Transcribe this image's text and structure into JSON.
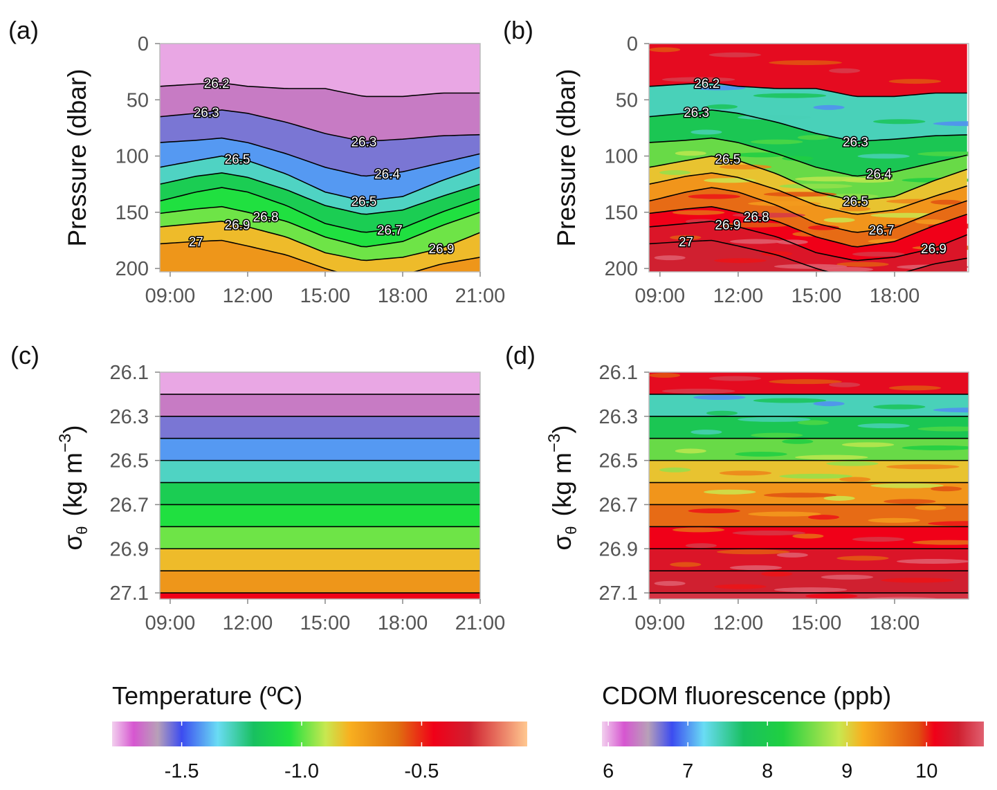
{
  "chart_data": [
    {
      "panel": "(a)",
      "type": "heatmap",
      "variable": "temperature",
      "xlabel": "",
      "ylabel": "Pressure (dbar)",
      "xticks": [
        "09:00",
        "12:00",
        "15:00",
        "18:00",
        "21:00"
      ],
      "xtick_hours": [
        9,
        12,
        15,
        18,
        21
      ],
      "yticks": [
        "0",
        "50",
        "100",
        "150",
        "200"
      ],
      "ytick_values": [
        0,
        50,
        100,
        150,
        200
      ],
      "xlim_hours": [
        8.6,
        21.0
      ],
      "ylim": [
        0,
        203
      ],
      "y_inverted": true
    },
    {
      "panel": "(b)",
      "type": "heatmap",
      "variable": "cdom",
      "xlabel": "",
      "ylabel": "Pressure (dbar)",
      "xticks": [
        "09:00",
        "12:00",
        "15:00",
        "18:00"
      ],
      "xtick_hours": [
        9,
        12,
        15,
        18
      ],
      "yticks": [
        "0",
        "50",
        "100",
        "150",
        "200"
      ],
      "ytick_values": [
        0,
        50,
        100,
        150,
        200
      ],
      "xlim_hours": [
        8.58,
        20.84
      ],
      "ylim": [
        0,
        203
      ],
      "y_inverted": true
    },
    {
      "panel": "(c)",
      "type": "heatmap",
      "variable": "temperature",
      "xlabel": "",
      "ylabel_main": "σ",
      "ylabel_sub": "θ",
      "ylabel_units": "(kg m",
      "ylabel_sup": "−3",
      "ylabel_close": ")",
      "xticks": [
        "09:00",
        "12:00",
        "15:00",
        "18:00",
        "21:00"
      ],
      "xtick_hours": [
        9,
        12,
        15,
        18,
        21
      ],
      "yticks": [
        "26.1",
        "26.3",
        "26.5",
        "26.7",
        "26.9",
        "27.1"
      ],
      "ytick_values": [
        26.1,
        26.3,
        26.5,
        26.7,
        26.9,
        27.1
      ],
      "xlim_hours": [
        8.6,
        21.0
      ],
      "ylim": [
        26.1,
        27.128
      ],
      "y_inverted": true
    },
    {
      "panel": "(d)",
      "type": "heatmap",
      "variable": "cdom",
      "xlabel": "",
      "ylabel_main": "σ",
      "ylabel_sub": "θ",
      "ylabel_units": "(kg m",
      "ylabel_sup": "−3",
      "ylabel_close": ")",
      "xticks": [
        "09:00",
        "12:00",
        "15:00",
        "18:00"
      ],
      "xtick_hours": [
        9,
        12,
        15,
        18
      ],
      "yticks": [
        "26.1",
        "26.3",
        "26.5",
        "26.7",
        "26.9",
        "27.1"
      ],
      "ytick_values": [
        26.1,
        26.3,
        26.5,
        26.7,
        26.9,
        27.1
      ],
      "xlim_hours": [
        8.58,
        20.84
      ],
      "ylim": [
        26.1,
        27.128
      ],
      "y_inverted": true
    }
  ],
  "isopycnals": {
    "hours": [
      8.6,
      10,
      11,
      12,
      13.5,
      15,
      16.5,
      18,
      19.5,
      21
    ],
    "levels": [
      {
        "sigma": 26.2,
        "pressure": [
          38,
          36,
          35,
          38,
          40,
          40,
          47,
          47,
          44,
          44
        ]
      },
      {
        "sigma": 26.3,
        "pressure": [
          65,
          62,
          59,
          62,
          70,
          80,
          87,
          85,
          82,
          81
        ]
      },
      {
        "sigma": 26.4,
        "pressure": [
          88,
          86,
          84,
          88,
          98,
          110,
          118,
          114,
          106,
          98
        ]
      },
      {
        "sigma": 26.5,
        "pressure": [
          110,
          104,
          100,
          104,
          116,
          132,
          140,
          136,
          122,
          110
        ]
      },
      {
        "sigma": 26.6,
        "pressure": [
          125,
          118,
          115,
          119,
          130,
          144,
          152,
          148,
          136,
          125
        ]
      },
      {
        "sigma": 26.7,
        "pressure": [
          140,
          132,
          128,
          132,
          144,
          160,
          168,
          164,
          150,
          138
        ]
      },
      {
        "sigma": 26.8,
        "pressure": [
          151,
          147,
          145,
          150,
          158,
          172,
          181,
          176,
          162,
          150
        ]
      },
      {
        "sigma": 26.9,
        "pressure": [
          163,
          160,
          158,
          163,
          172,
          186,
          193,
          190,
          182,
          168
        ]
      },
      {
        "sigma": 27.0,
        "pressure": [
          178,
          176,
          175,
          180,
          188,
          200,
          210,
          206,
          196,
          190
        ]
      }
    ],
    "labels": [
      {
        "text": "26.2",
        "sigma": 26.2,
        "hour": 10.8
      },
      {
        "text": "26.3",
        "sigma": 26.3,
        "hour": 10.4
      },
      {
        "text": "26.3",
        "sigma": 26.3,
        "hour": 16.5
      },
      {
        "text": "26.5",
        "sigma": 26.5,
        "hour": 11.6
      },
      {
        "text": "26.4",
        "sigma": 26.4,
        "hour": 17.4
      },
      {
        "text": "26.5",
        "sigma": 26.5,
        "hour": 16.5
      },
      {
        "text": "26.8",
        "sigma": 26.8,
        "hour": 12.7
      },
      {
        "text": "26.9",
        "sigma": 26.9,
        "hour": 11.6
      },
      {
        "text": "26.7",
        "sigma": 26.7,
        "hour": 17.5
      },
      {
        "text": "27",
        "sigma": 27.0,
        "hour": 10.0
      },
      {
        "text": "26.9",
        "sigma": 26.9,
        "hour": 19.5
      }
    ],
    "sigma_lines": [
      26.2,
      26.3,
      26.4,
      26.5,
      26.6,
      26.7,
      26.8,
      26.9,
      27.0,
      27.1
    ]
  },
  "layer_means": {
    "sigma_bounds": [
      26.1,
      26.2,
      26.3,
      26.4,
      26.5,
      26.6,
      26.7,
      26.8,
      26.9,
      27.0,
      27.1
    ],
    "temperature": [
      -1.76,
      -1.65,
      -1.55,
      -1.42,
      -1.3,
      -1.14,
      -1.05,
      -0.98,
      -0.82,
      -0.72,
      -0.45
    ],
    "cdom": [
      10.2,
      7.4,
      7.9,
      8.5,
      9.1,
      9.4,
      9.7,
      10.1,
      10.3,
      10.4,
      10.5
    ]
  },
  "colorbars": {
    "temperature": {
      "title": "Temperature (ºC)",
      "range": [
        -1.79,
        -0.06
      ],
      "ticks": [
        "-1.5",
        "-1.0",
        "-0.5"
      ],
      "tick_values": [
        -1.5,
        -1.0,
        -0.5
      ],
      "stops": [
        [
          -1.79,
          "#f2d0ee"
        ],
        [
          -1.7,
          "#d656d0"
        ],
        [
          -1.6,
          "#b8a0b8"
        ],
        [
          -1.5,
          "#3c4cf0"
        ],
        [
          -1.35,
          "#6adcf4"
        ],
        [
          -1.2,
          "#18c060"
        ],
        [
          -1.05,
          "#20e040"
        ],
        [
          -0.9,
          "#c8e850"
        ],
        [
          -0.8,
          "#f8b020"
        ],
        [
          -0.6,
          "#e07010"
        ],
        [
          -0.45,
          "#f00018"
        ],
        [
          -0.3,
          "#d02030"
        ],
        [
          -0.06,
          "#ffc890"
        ]
      ]
    },
    "cdom": {
      "title": "CDOM fluorescence (ppb)",
      "range": [
        5.92,
        10.72
      ],
      "ticks": [
        "6",
        "7",
        "8",
        "9",
        "10"
      ],
      "tick_values": [
        6,
        7,
        8,
        9,
        10
      ],
      "stops": [
        [
          5.92,
          "#f2d0ee"
        ],
        [
          6.2,
          "#d656d0"
        ],
        [
          6.5,
          "#b8a0b8"
        ],
        [
          6.8,
          "#3c4cf0"
        ],
        [
          7.2,
          "#6adcf4"
        ],
        [
          7.7,
          "#18c060"
        ],
        [
          8.2,
          "#20d040"
        ],
        [
          8.9,
          "#c8e850"
        ],
        [
          9.2,
          "#f8b020"
        ],
        [
          9.9,
          "#e05010"
        ],
        [
          10.1,
          "#f00018"
        ],
        [
          10.4,
          "#d02030"
        ],
        [
          10.72,
          "#e06070"
        ]
      ]
    }
  },
  "panel_letters": [
    "(a)",
    "(b)",
    "(c)",
    "(d)"
  ]
}
